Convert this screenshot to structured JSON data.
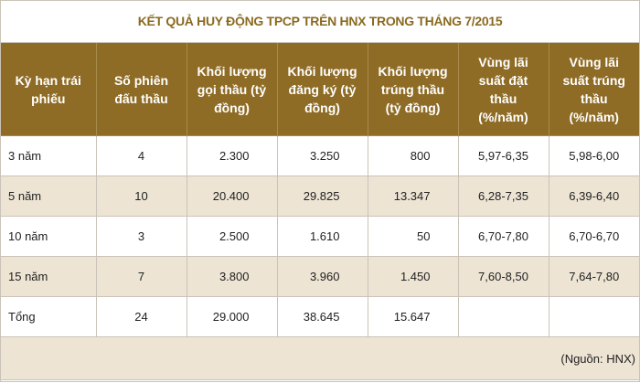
{
  "title": "KẾT QUẢ HUY ĐỘNG TPCP TRÊN HNX TRONG THÁNG 7/2015",
  "columns": [
    "Kỳ hạn trái phiếu",
    "Số phiên đấu thầu",
    "Khối lượng gọi thầu (tỷ đồng)",
    "Khối lượng đăng ký (tỷ đồng)",
    "Khối lượng trúng thầu (tỷ đồng)",
    "Vùng lãi suất đặt thầu (%/năm)",
    "Vùng lãi suất trúng thầu (%/năm)"
  ],
  "rows": [
    [
      "3 năm",
      "4",
      "2.300",
      "3.250",
      "800",
      "5,97-6,35",
      "5,98-6,00"
    ],
    [
      "5 năm",
      "10",
      "20.400",
      "29.825",
      "13.347",
      "6,28-7,35",
      "6,39-6,40"
    ],
    [
      "10 năm",
      "3",
      "2.500",
      "1.610",
      "50",
      "6,70-7,80",
      "6,70-6,70"
    ],
    [
      "15 năm",
      "7",
      "3.800",
      "3.960",
      "1.450",
      "7,60-8,50",
      "7,64-7,80"
    ],
    [
      "Tổng",
      "24",
      "29.000",
      "38.645",
      "15.647",
      "",
      ""
    ]
  ],
  "source": "(Nguồn: HNX)",
  "colors": {
    "header_bg": "#8f6c25",
    "title": "#8a6a20",
    "stripe": "#ede4d4"
  }
}
